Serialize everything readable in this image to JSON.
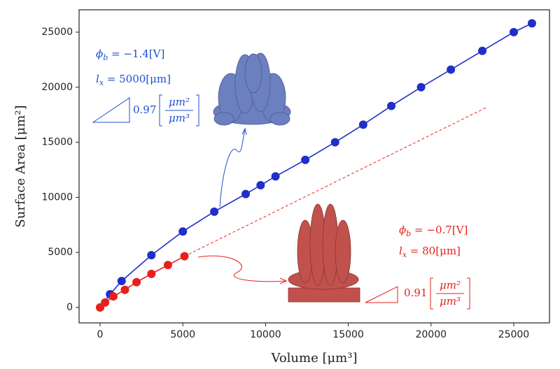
{
  "chart_data": {
    "type": "line",
    "xlabel": "Volume [μm³]",
    "ylabel": "Surface Area [μm²]",
    "xlim": [
      -1270,
      27160
    ],
    "ylim": [
      -1400,
      27030
    ],
    "xticks": [
      0,
      5000,
      10000,
      15000,
      20000,
      25000
    ],
    "yticks": [
      0,
      5000,
      10000,
      15000,
      20000,
      25000
    ],
    "series": [
      {
        "color": "#1f2fc8",
        "marker": true,
        "dashed": false,
        "x": [
          0,
          600,
          1300,
          3100,
          5000,
          6900,
          8800,
          9700,
          10600,
          12400,
          14200,
          15900,
          17600,
          19400,
          21200,
          23100,
          25000,
          26100
        ],
        "values": [
          0,
          1200,
          2400,
          4750,
          6900,
          8700,
          10300,
          11100,
          11900,
          13400,
          15000,
          16600,
          18300,
          20000,
          21600,
          23300,
          25000,
          25800
        ]
      },
      {
        "color": "#e8201c",
        "marker": true,
        "dashed": false,
        "x": [
          0,
          300,
          800,
          1500,
          2200,
          3100,
          4100,
          5100
        ],
        "values": [
          0,
          450,
          1000,
          1600,
          2300,
          3050,
          3850,
          4650
        ]
      },
      {
        "color": "#e8201c",
        "marker": false,
        "dashed": true,
        "x": [
          5100,
          23400
        ],
        "values": [
          4650,
          18200
        ]
      }
    ],
    "annotations": [
      {
        "color": "#1f4fd0",
        "phi": "ϕ",
        "phi_sub": "b",
        "phi_rest": " = −1.4[V]",
        "l": "l",
        "l_sub": "x",
        "l_rest": " = 5000[μm]",
        "slope": "0.97",
        "num": "μm²",
        "den": "μm³"
      },
      {
        "color": "#e8201c",
        "phi": "ϕ",
        "phi_sub": "b",
        "phi_rest": " = −0.7[V]",
        "l": "l",
        "l_sub": "x",
        "l_rest": " = 80[μm]",
        "slope": "0.91",
        "num": "μm²",
        "den": "μm³"
      }
    ]
  }
}
